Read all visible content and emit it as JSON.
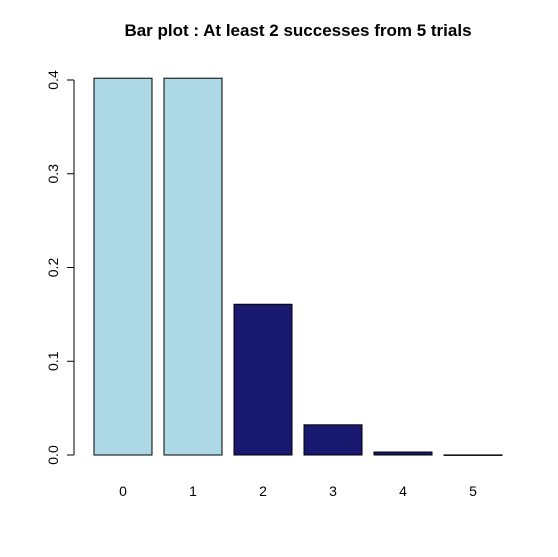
{
  "chart_data": {
    "type": "bar",
    "title": "Bar plot : At least 2 successes from 5 trials",
    "xlabel": "",
    "ylabel": "",
    "categories": [
      "0",
      "1",
      "2",
      "3",
      "4",
      "5"
    ],
    "values": [
      0.4019,
      0.4019,
      0.1608,
      0.0322,
      0.0032,
      0.0001
    ],
    "ylim": [
      0,
      0.4
    ],
    "y_ticks": [
      "0.0",
      "0.1",
      "0.2",
      "0.3",
      "0.4"
    ],
    "grid": false,
    "legend": "none",
    "colors": [
      "#add8e6",
      "#add8e6",
      "#191970",
      "#191970",
      "#191970",
      "#191970"
    ]
  }
}
